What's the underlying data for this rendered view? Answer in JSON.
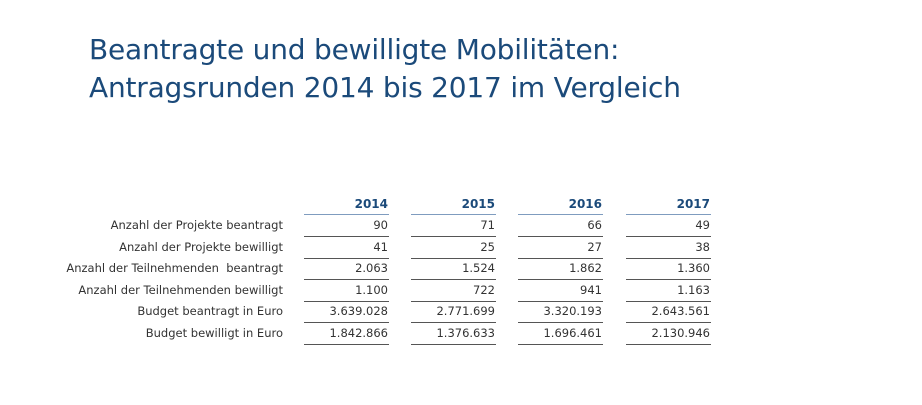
{
  "header": {
    "title_lines": [
      "Beantragte und bewilligte Mobilitäten:",
      "Antragsrunden 2014 bis 2017 im Vergleich"
    ]
  },
  "table": {
    "columns": [
      "2014",
      "2015",
      "2016",
      "2017"
    ],
    "rows": [
      {
        "label": "Anzahl der Projekte beantragt",
        "cells": [
          "90",
          "71",
          "66",
          "49"
        ]
      },
      {
        "label": "Anzahl der Projekte bewilligt",
        "cells": [
          "41",
          "25",
          "27",
          "38"
        ]
      },
      {
        "label": "Anzahl der Teilnehmenden  beantragt",
        "cells": [
          "2.063",
          "1.524",
          "1.862",
          "1.360"
        ]
      },
      {
        "label": "Anzahl der Teilnehmenden bewilligt",
        "cells": [
          "1.100",
          "722",
          "941",
          "1.163"
        ]
      },
      {
        "label": "Budget beantragt in Euro",
        "cells": [
          "3.639.028",
          "2.771.699",
          "3.320.193",
          "2.643.561"
        ]
      },
      {
        "label": "Budget bewilligt in Euro",
        "cells": [
          "1.842.866",
          "1.376.633",
          "1.696.461",
          "2.130.946"
        ]
      }
    ]
  }
}
